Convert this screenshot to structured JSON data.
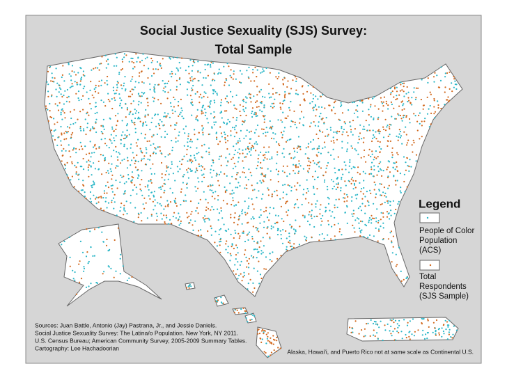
{
  "title": [
    "Social Justice Sexuality (SJS) Survey:",
    "Total Sample"
  ],
  "legend": {
    "title": "Legend",
    "items": [
      {
        "label": [
          "People of Color",
          "Population",
          "(ACS)"
        ]
      },
      {
        "label": [
          "Total",
          "Respondents",
          "(SJS Sample)"
        ]
      }
    ]
  },
  "sources": [
    "Sources: Juan Battle, Antonio (Jay) Pastrana, Jr., and Jessie Daniels.",
    "Social Justice Sexuality Survey: The Latina/o Population. New York, NY 2011.",
    "U.S. Census Bureau; American Community Survey, 2005-2009 Summary Tables.",
    "Cartography: Lee Hachadoorian"
  ],
  "note": "Alaska, Hawai'i, and Puerto Rico not at same scale as Continental U.S."
}
